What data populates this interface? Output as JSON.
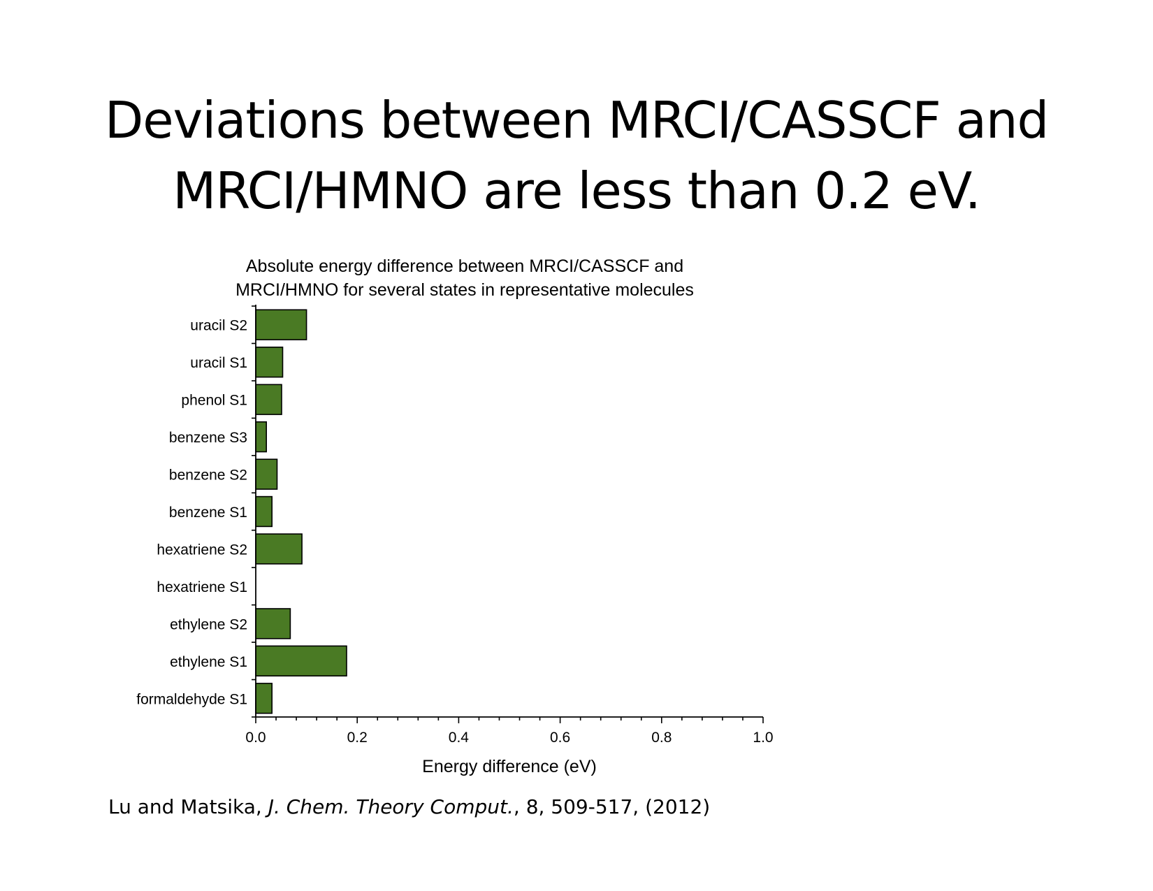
{
  "slide": {
    "title_line1": "Deviations between MRCI/CASSCF and",
    "title_line2": "MRCI/HMNO are less than 0.2 eV."
  },
  "citation": {
    "authors": "Lu and Matsika, ",
    "journal": "J. Chem. Theory Comput.",
    "details": ", 8, 509-517, (2012)"
  },
  "chart_data": {
    "type": "bar",
    "orientation": "horizontal",
    "title": "Absolute energy difference between MRCI/CASSCF and MRCI/HMNO for several states in representative molecules",
    "title_lines": [
      "Absolute energy difference between MRCI/CASSCF and",
      "MRCI/HMNO for several states in representative molecules"
    ],
    "xlabel": "Energy difference (eV)",
    "ylabel": "",
    "xlim": [
      0,
      1.0
    ],
    "xticks": [
      "0.0",
      "0.2",
      "0.4",
      "0.6",
      "0.8",
      "1.0"
    ],
    "categories": [
      "uracil S2",
      "uracil S1",
      "phenol S1",
      "benzene S3",
      "benzene S2",
      "benzene S1",
      "hexatriene S2",
      "hexatriene S1",
      "ethylene S2",
      "ethylene S1",
      "formaldehyde S1"
    ],
    "values": [
      0.1,
      0.053,
      0.051,
      0.021,
      0.042,
      0.032,
      0.091,
      0.0,
      0.068,
      0.179,
      0.032
    ],
    "grid": false,
    "bar_color": "#4a7a24"
  }
}
